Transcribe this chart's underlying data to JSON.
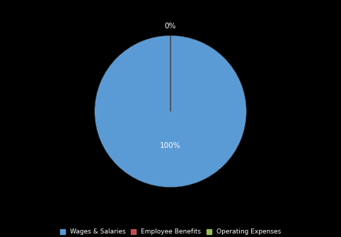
{
  "labels": [
    "Wages & Salaries",
    "Employee Benefits",
    "Operating Expenses"
  ],
  "values": [
    100,
    0.0001,
    0.0001
  ],
  "colors": [
    "#5B9BD5",
    "#C0504D",
    "#9BBB59"
  ],
  "background_color": "#000000",
  "text_color": "#FFFFFF",
  "figsize": [
    4.82,
    3.35
  ],
  "dpi": 100,
  "legend_fontsize": 6.5,
  "pct_fontsize": 7.5
}
